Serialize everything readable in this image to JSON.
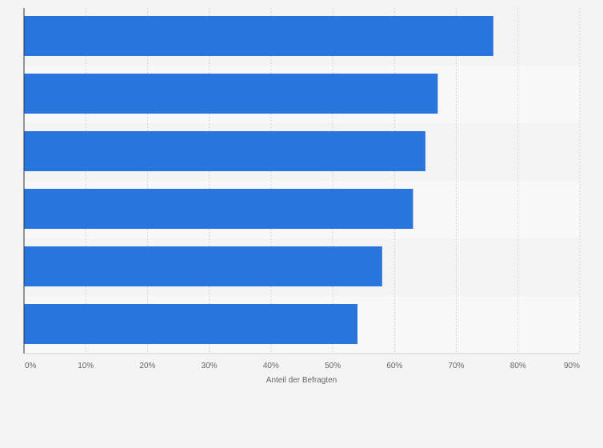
{
  "chart_data": {
    "type": "bar",
    "orientation": "horizontal",
    "categories": [
      "",
      "",
      "",
      "",
      "",
      ""
    ],
    "values": [
      76,
      67,
      65,
      63,
      58,
      54
    ],
    "xlabel": "Anteil der Befragten",
    "xlim": [
      0,
      90
    ],
    "x_ticks": [
      0,
      10,
      20,
      30,
      40,
      50,
      60,
      70,
      80,
      90
    ],
    "tick_suffix": "%",
    "grid": true,
    "bar_color": "#2876dd",
    "band_colors": [
      "#f4f4f4",
      "#f8f8f8"
    ]
  }
}
